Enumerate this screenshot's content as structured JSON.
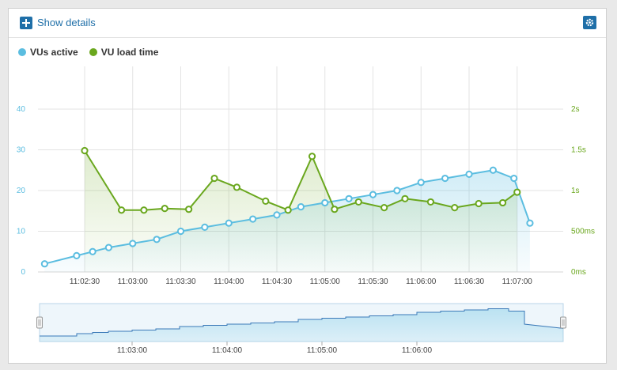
{
  "toolbar": {
    "show_details_label": "Show details"
  },
  "colors": {
    "vus": "#5bbde0",
    "load": "#6aa71e",
    "accent": "#1f6fa8",
    "grid": "#e3e3e3"
  },
  "chart_data": {
    "type": "line",
    "title": "",
    "grid": true,
    "legend": "top-left",
    "x_ticks": [
      "11:02:30",
      "11:03:00",
      "11:03:30",
      "11:04:00",
      "11:04:30",
      "11:05:00",
      "11:05:30",
      "11:06:00",
      "11:06:30",
      "11:07:00"
    ],
    "y_left": {
      "ticks": [
        "0",
        "10",
        "20",
        "30",
        "40"
      ],
      "ylim": [
        0,
        40
      ]
    },
    "y_right": {
      "ticks": [
        "0ms",
        "500ms",
        "1s",
        "1.5s",
        "2s"
      ],
      "ylim": [
        0,
        2
      ]
    },
    "series": [
      {
        "name": "VUs active",
        "axis": "left",
        "area": true,
        "x": [
          "11:02:05",
          "11:02:25",
          "11:02:35",
          "11:02:45",
          "11:03:00",
          "11:03:15",
          "11:03:30",
          "11:03:45",
          "11:04:00",
          "11:04:15",
          "11:04:30",
          "11:04:45",
          "11:05:00",
          "11:05:15",
          "11:05:30",
          "11:05:45",
          "11:06:00",
          "11:06:15",
          "11:06:30",
          "11:06:45",
          "11:06:58",
          "11:07:08"
        ],
        "values": [
          2,
          4,
          5,
          6,
          7,
          8,
          10,
          11,
          12,
          13,
          14,
          16,
          17,
          18,
          19,
          20,
          22,
          23,
          24,
          25,
          23,
          12
        ]
      },
      {
        "name": "VU load time",
        "axis": "right",
        "area": true,
        "unit": "s",
        "x": [
          "11:02:30",
          "11:02:53",
          "11:03:07",
          "11:03:20",
          "11:03:35",
          "11:03:51",
          "11:04:05",
          "11:04:23",
          "11:04:37",
          "11:04:52",
          "11:05:06",
          "11:05:21",
          "11:05:37",
          "11:05:50",
          "11:06:06",
          "11:06:21",
          "11:06:36",
          "11:06:51",
          "11:07:00"
        ],
        "values": [
          1.49,
          0.76,
          0.76,
          0.78,
          0.77,
          1.15,
          1.04,
          0.87,
          0.76,
          1.42,
          0.77,
          0.86,
          0.79,
          0.9,
          0.86,
          0.79,
          0.84,
          0.85,
          0.98
        ]
      }
    ]
  },
  "navigator": {
    "x_ticks": [
      "11:03:00",
      "11:04:00",
      "11:05:00",
      "11:06:00"
    ]
  }
}
